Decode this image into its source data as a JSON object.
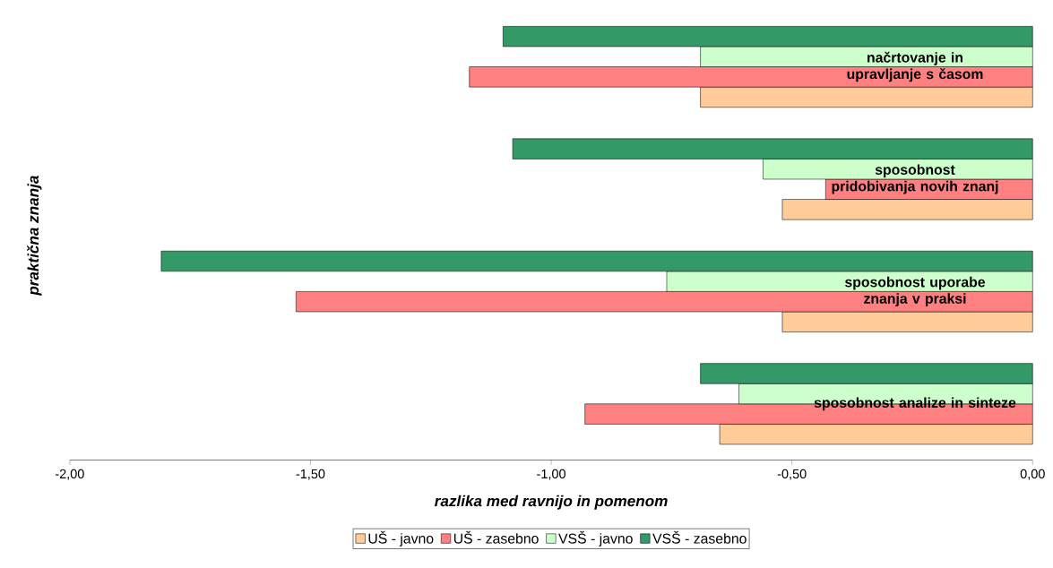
{
  "chart_data": {
    "type": "bar",
    "orientation": "horizontal",
    "xlabel": "razlika med ravnijo in pomenom",
    "ylabel": "praktična znanja",
    "categories": [
      "načrtovanje in upravljanje s časom",
      "sposobnost pridobivanja novih znanj",
      "sposobnost uporabe znanja v praksi",
      "sposobnost analize in sinteze"
    ],
    "series": [
      {
        "name": "UŠ - javno",
        "color": "#ffcc99",
        "values": [
          -0.69,
          -0.52,
          -0.52,
          -0.65
        ]
      },
      {
        "name": "UŠ - zasebno",
        "color": "#ff8080",
        "values": [
          -1.17,
          -0.43,
          -1.53,
          -0.93
        ]
      },
      {
        "name": "VSŠ - javno",
        "color": "#ccffcc",
        "values": [
          -0.69,
          -0.56,
          -0.76,
          -0.61
        ]
      },
      {
        "name": "VSŠ - zasebno",
        "color": "#339966",
        "values": [
          -1.1,
          -1.08,
          -1.81,
          -0.69
        ]
      }
    ],
    "xlim": [
      -2,
      0
    ],
    "xticks": [
      {
        "value": -2,
        "label": "-2,00"
      },
      {
        "value": -1.5,
        "label": "-1,50"
      },
      {
        "value": -1,
        "label": "-1,00"
      },
      {
        "value": -0.5,
        "label": "-0,50"
      },
      {
        "value": 0,
        "label": "0,00"
      }
    ],
    "legend": "bottom"
  }
}
